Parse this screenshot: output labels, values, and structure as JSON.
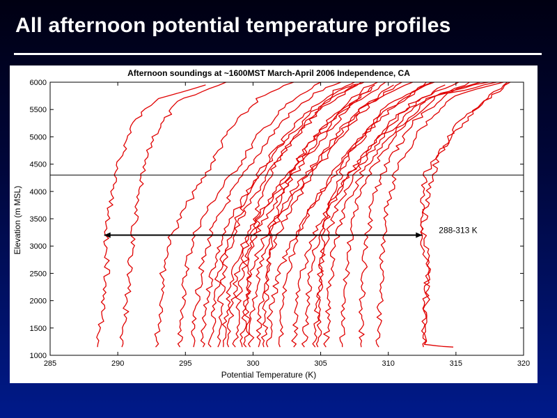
{
  "slide": {
    "title": "All afternoon potential temperature profiles"
  },
  "chart_data": {
    "type": "line",
    "title": "Afternoon soundings at ~1600MST March-April 2006 Independence, CA",
    "xlabel": "Potential Temperature (K)",
    "ylabel": "Elevation (m MSL)",
    "xlim": [
      285,
      320
    ],
    "ylim": [
      1000,
      6000
    ],
    "xticks": [
      285,
      290,
      295,
      300,
      305,
      310,
      315,
      320
    ],
    "yticks": [
      1000,
      1500,
      2000,
      2500,
      3000,
      3500,
      4000,
      4500,
      5000,
      5500,
      6000
    ],
    "grid": false,
    "line_color": "#e00000",
    "reference_line": {
      "y": 4300,
      "color": "#000000"
    },
    "range_annotation": {
      "label": "288-313 K",
      "x_start": 289,
      "x_end": 312.5,
      "y": 3200
    },
    "series": [
      {
        "values": [
          [
            288.5,
            1150
          ],
          [
            288.9,
            1800
          ],
          [
            289.2,
            2500
          ],
          [
            289.1,
            3200
          ],
          [
            289.6,
            4000
          ],
          [
            290.2,
            4600
          ],
          [
            291.0,
            5200
          ],
          [
            292.8,
            5700
          ],
          [
            296.5,
            5950
          ]
        ]
      },
      {
        "values": [
          [
            290.3,
            1150
          ],
          [
            290.6,
            1800
          ],
          [
            290.9,
            2600
          ],
          [
            291.2,
            3300
          ],
          [
            291.8,
            4200
          ],
          [
            292.6,
            5000
          ],
          [
            294.5,
            5650
          ],
          [
            298.0,
            6000
          ]
        ]
      },
      {
        "values": [
          [
            292.8,
            1150
          ],
          [
            293.1,
            1800
          ],
          [
            293.3,
            2500
          ],
          [
            293.8,
            3100
          ],
          [
            295.0,
            3700
          ],
          [
            296.7,
            4400
          ],
          [
            298.2,
            5100
          ],
          [
            300.4,
            5700
          ],
          [
            303.0,
            6000
          ]
        ]
      },
      {
        "values": [
          [
            294.6,
            1150
          ],
          [
            294.8,
            2000
          ],
          [
            295.1,
            2700
          ],
          [
            295.8,
            3300
          ],
          [
            297.2,
            3900
          ],
          [
            299.0,
            4500
          ],
          [
            300.6,
            5100
          ],
          [
            302.6,
            5600
          ],
          [
            305.0,
            6000
          ]
        ]
      },
      {
        "values": [
          [
            295.6,
            1150
          ],
          [
            295.8,
            1900
          ],
          [
            296.2,
            2600
          ],
          [
            297.0,
            3300
          ],
          [
            298.5,
            4000
          ],
          [
            300.4,
            4700
          ],
          [
            302.2,
            5300
          ],
          [
            304.6,
            5800
          ],
          [
            306.5,
            6000
          ]
        ]
      },
      {
        "values": [
          [
            296.3,
            1150
          ],
          [
            296.5,
            1800
          ],
          [
            296.9,
            2500
          ],
          [
            297.8,
            3200
          ],
          [
            299.3,
            3900
          ],
          [
            301.2,
            4600
          ],
          [
            303.4,
            5300
          ],
          [
            306.0,
            5850
          ],
          [
            307.5,
            6000
          ]
        ]
      },
      {
        "values": [
          [
            296.9,
            1150
          ],
          [
            297.1,
            1900
          ],
          [
            297.6,
            2700
          ],
          [
            298.6,
            3400
          ],
          [
            300.1,
            4100
          ],
          [
            302.0,
            4800
          ],
          [
            304.1,
            5400
          ],
          [
            306.8,
            5900
          ],
          [
            308.2,
            6000
          ]
        ]
      },
      {
        "values": [
          [
            297.4,
            1150
          ],
          [
            297.6,
            2000
          ],
          [
            298.0,
            2800
          ],
          [
            299.1,
            3500
          ],
          [
            300.8,
            4200
          ],
          [
            302.8,
            4900
          ],
          [
            305.0,
            5500
          ],
          [
            307.6,
            5950
          ]
        ]
      },
      {
        "values": [
          [
            297.8,
            1150
          ],
          [
            298.0,
            1800
          ],
          [
            298.5,
            2500
          ],
          [
            299.5,
            3200
          ],
          [
            301.3,
            3900
          ],
          [
            303.4,
            4600
          ],
          [
            305.6,
            5300
          ],
          [
            308.3,
            5900
          ],
          [
            309.2,
            6000
          ]
        ]
      },
      {
        "values": [
          [
            298.2,
            1150
          ],
          [
            298.4,
            1900
          ],
          [
            298.9,
            2600
          ],
          [
            300.0,
            3300
          ],
          [
            301.8,
            4000
          ],
          [
            304.0,
            4700
          ],
          [
            306.2,
            5400
          ],
          [
            309.0,
            5950
          ]
        ]
      },
      {
        "values": [
          [
            298.7,
            1150
          ],
          [
            298.9,
            2000
          ],
          [
            299.4,
            2700
          ],
          [
            300.6,
            3400
          ],
          [
            302.4,
            4100
          ],
          [
            304.6,
            4800
          ],
          [
            306.9,
            5500
          ],
          [
            309.8,
            6000
          ]
        ]
      },
      {
        "values": [
          [
            299.2,
            1150
          ],
          [
            299.4,
            1800
          ],
          [
            299.9,
            2600
          ],
          [
            301.1,
            3300
          ],
          [
            302.9,
            4000
          ],
          [
            305.1,
            4700
          ],
          [
            307.4,
            5400
          ],
          [
            310.4,
            5950
          ]
        ]
      },
      {
        "values": [
          [
            299.8,
            1150
          ],
          [
            300.0,
            1900
          ],
          [
            300.5,
            2700
          ],
          [
            301.7,
            3400
          ],
          [
            303.5,
            4100
          ],
          [
            305.6,
            4800
          ],
          [
            307.9,
            5500
          ],
          [
            311.0,
            6000
          ]
        ]
      },
      {
        "values": [
          [
            300.4,
            1150
          ],
          [
            300.6,
            2000
          ],
          [
            301.2,
            2800
          ],
          [
            302.4,
            3500
          ],
          [
            304.1,
            4200
          ],
          [
            306.2,
            4900
          ],
          [
            308.6,
            5600
          ],
          [
            311.8,
            6000
          ]
        ]
      },
      {
        "values": [
          [
            301.1,
            1150
          ],
          [
            301.3,
            1800
          ],
          [
            301.9,
            2500
          ],
          [
            303.1,
            3200
          ],
          [
            304.8,
            3900
          ],
          [
            306.9,
            4600
          ],
          [
            309.2,
            5300
          ],
          [
            312.4,
            5900
          ],
          [
            313.2,
            6000
          ]
        ]
      },
      {
        "values": [
          [
            302.0,
            1150
          ],
          [
            302.2,
            2000
          ],
          [
            302.8,
            2800
          ],
          [
            303.9,
            3500
          ],
          [
            305.5,
            4200
          ],
          [
            307.6,
            4900
          ],
          [
            310.0,
            5600
          ],
          [
            313.4,
            6000
          ]
        ]
      },
      {
        "values": [
          [
            303.0,
            1150
          ],
          [
            303.2,
            1900
          ],
          [
            303.7,
            2600
          ],
          [
            304.7,
            3300
          ],
          [
            306.2,
            4000
          ],
          [
            308.3,
            4700
          ],
          [
            310.7,
            5400
          ],
          [
            314.2,
            5950
          ]
        ]
      },
      {
        "values": [
          [
            303.8,
            1150
          ],
          [
            304.0,
            2000
          ],
          [
            304.4,
            2800
          ],
          [
            305.3,
            3500
          ],
          [
            306.8,
            4200
          ],
          [
            309.0,
            4900
          ],
          [
            311.6,
            5600
          ],
          [
            315.2,
            6000
          ]
        ]
      },
      {
        "values": [
          [
            304.6,
            1150
          ],
          [
            304.8,
            2000
          ],
          [
            305.2,
            2900
          ],
          [
            306.0,
            3600
          ],
          [
            307.4,
            4300
          ],
          [
            309.6,
            5000
          ],
          [
            312.3,
            5600
          ],
          [
            316.0,
            6000
          ]
        ]
      },
      {
        "values": [
          [
            305.4,
            1150
          ],
          [
            305.6,
            2100
          ],
          [
            306.0,
            3000
          ],
          [
            306.8,
            3700
          ],
          [
            308.2,
            4400
          ],
          [
            310.4,
            5100
          ],
          [
            313.0,
            5700
          ],
          [
            316.8,
            6000
          ]
        ]
      },
      {
        "values": [
          [
            306.6,
            1150
          ],
          [
            306.8,
            2200
          ],
          [
            307.1,
            3000
          ],
          [
            307.7,
            3800
          ],
          [
            309.0,
            4500
          ],
          [
            311.1,
            5200
          ],
          [
            313.8,
            5800
          ],
          [
            317.4,
            6000
          ]
        ]
      },
      {
        "values": [
          [
            308.0,
            1150
          ],
          [
            308.1,
            2200
          ],
          [
            308.4,
            3100
          ],
          [
            308.9,
            3900
          ],
          [
            310.1,
            4600
          ],
          [
            312.0,
            5300
          ],
          [
            314.6,
            5800
          ],
          [
            318.0,
            6000
          ]
        ]
      },
      {
        "values": [
          [
            309.3,
            1150
          ],
          [
            309.4,
            2000
          ],
          [
            309.6,
            2900
          ],
          [
            309.9,
            3700
          ],
          [
            310.6,
            4400
          ],
          [
            312.2,
            5100
          ],
          [
            314.8,
            5750
          ],
          [
            318.5,
            6000
          ]
        ]
      },
      {
        "values": [
          [
            312.6,
            1150
          ],
          [
            312.7,
            1800
          ],
          [
            312.9,
            2500
          ],
          [
            312.5,
            3200
          ],
          [
            312.9,
            3900
          ],
          [
            313.6,
            4600
          ],
          [
            315.3,
            5300
          ],
          [
            318.8,
            6000
          ]
        ]
      },
      {
        "values": [
          [
            314.8,
            1150
          ],
          [
            312.6,
            1200
          ],
          [
            312.8,
            1900
          ],
          [
            313.0,
            2700
          ],
          [
            312.4,
            3500
          ],
          [
            312.7,
            4300
          ],
          [
            314.6,
            5000
          ],
          [
            316.8,
            5600
          ],
          [
            319.0,
            6000
          ]
        ]
      },
      {
        "values": [
          [
            300.8,
            1150
          ],
          [
            300.9,
            1800
          ],
          [
            301.1,
            2500
          ],
          [
            301.4,
            3300
          ],
          [
            302.2,
            4000
          ],
          [
            303.6,
            4700
          ],
          [
            305.7,
            5300
          ],
          [
            308.8,
            5900
          ]
        ]
      },
      {
        "values": [
          [
            304.8,
            1150
          ],
          [
            304.9,
            1900
          ],
          [
            305.0,
            2600
          ],
          [
            305.3,
            3300
          ],
          [
            305.9,
            4000
          ],
          [
            307.2,
            4700
          ],
          [
            309.4,
            5400
          ],
          [
            312.8,
            6000
          ]
        ]
      },
      {
        "values": [
          [
            299.5,
            1150
          ],
          [
            299.6,
            2200
          ],
          [
            299.9,
            3000
          ],
          [
            300.4,
            3800
          ],
          [
            301.4,
            4400
          ],
          [
            303.0,
            5000
          ],
          [
            305.2,
            5600
          ],
          [
            308.0,
            6000
          ]
        ]
      }
    ]
  }
}
